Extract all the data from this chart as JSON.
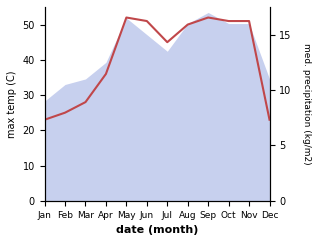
{
  "months": [
    "Jan",
    "Feb",
    "Mar",
    "Apr",
    "May",
    "Jun",
    "Jul",
    "Aug",
    "Sep",
    "Oct",
    "Nov",
    "Dec"
  ],
  "temperature": [
    23,
    25,
    28,
    36,
    52,
    51,
    45,
    50,
    52,
    51,
    51,
    23
  ],
  "precipitation": [
    9.0,
    10.5,
    11.0,
    12.5,
    16.5,
    15.0,
    13.5,
    16.0,
    17.0,
    16.0,
    16.0,
    11.0
  ],
  "temp_color": "#c0474a",
  "precip_fill_color": "#b0bce8",
  "precip_fill_alpha": 0.7,
  "temp_ylim": [
    0,
    55
  ],
  "precip_ylim": [
    0,
    17.5
  ],
  "temp_yticks": [
    0,
    10,
    20,
    30,
    40,
    50
  ],
  "precip_yticks": [
    0,
    5,
    10,
    15
  ],
  "temp_ylabel": "max temp (C)",
  "precip_ylabel": "med. precipitation (kg/m2)",
  "xlabel": "date (month)",
  "background_color": "#ffffff",
  "temp_scale": 55,
  "precip_scale": 17.5
}
